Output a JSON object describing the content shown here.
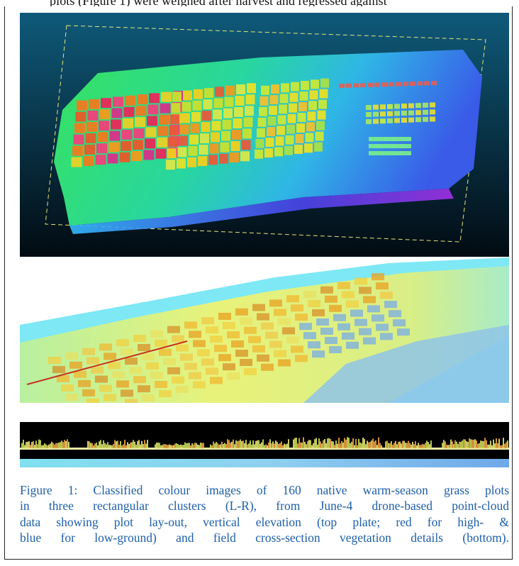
{
  "top_line_text": "plots (Figure 1) were weighed after harvest and regressed against",
  "colors": {
    "caption_text": "#1e5fa8",
    "panel1_background_top": "#0f5a7a",
    "panel1_background_bottom": "#020b12",
    "panel2_background": "#7ee8f5",
    "panel3_background": "#000000",
    "transect_line": "#c8321e",
    "bounding_box": "#e6e67a"
  },
  "figure": {
    "panels": [
      {
        "id": "elevation-top-view",
        "content": "point-cloud plot grid coloured by vertical elevation"
      },
      {
        "id": "classified-oblique-view",
        "content": "classified colour point-cloud with transect line"
      },
      {
        "id": "cross-section",
        "content": "field cross-section vegetation profile"
      }
    ],
    "caption_lines": [
      "Figure 1: Classified colour images of 160 native warm-season grass plots",
      "in three rectangular clusters (L-R), from June-4 drone-based point-cloud",
      "data showing plot lay-out, vertical elevation (top plate; red for high- &",
      "blue for low-ground) and field cross-section vegetation details (bottom)."
    ]
  }
}
